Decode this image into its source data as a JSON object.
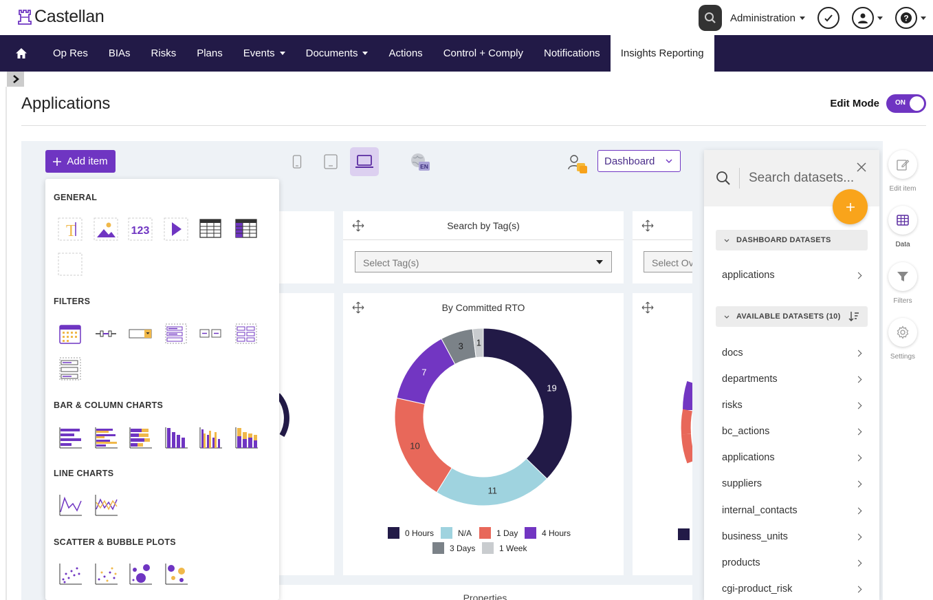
{
  "app": {
    "name": "Castellan"
  },
  "header": {
    "admin_label": "Administration"
  },
  "nav": {
    "items": [
      "Op Res",
      "BIAs",
      "Risks",
      "Plans",
      "Events",
      "Documents",
      "Actions",
      "Control + Comply",
      "Notifications",
      "Insights Reporting"
    ],
    "active": "Insights Reporting"
  },
  "page": {
    "title": "Applications",
    "edit_mode_label": "Edit Mode",
    "edit_mode_state": "ON"
  },
  "toolbar": {
    "add_item_label": "Add item",
    "dashboard_select": "Dashboard",
    "language_badge": "EN"
  },
  "add_menu": {
    "sections": [
      "GENERAL",
      "FILTERS",
      "BAR & COLUMN CHARTS",
      "LINE CHARTS",
      "SCATTER & BUBBLE PLOTS"
    ],
    "general_number_icon_text": "123"
  },
  "widgets": {
    "tag_filter": {
      "title": "Search by Tag(s)",
      "placeholder": "Select Tag(s)"
    },
    "right_filter": {
      "placeholder": "Select Ov"
    },
    "rto_chart": {
      "title": "By Committed RTO"
    },
    "bottom_card": {
      "title": "Properties"
    }
  },
  "chart_data": {
    "type": "pie",
    "title": "By Committed RTO",
    "donut": true,
    "categories": [
      "0 Hours",
      "N/A",
      "1 Day",
      "4 Hours",
      "3 Days",
      "1 Week"
    ],
    "values": [
      19,
      11,
      10,
      7,
      3,
      1
    ],
    "colors": [
      "#221a47",
      "#9fd3df",
      "#e8685a",
      "#7236c2",
      "#7b8288",
      "#c9cccf"
    ],
    "data_label_colors": [
      "#ffffff",
      "#333333",
      "#333333",
      "#ffffff",
      "#222222",
      "#222222"
    ],
    "legend_position": "bottom"
  },
  "dataset_panel": {
    "search_placeholder": "Search datasets...",
    "dashboard_section": "DASHBOARD DATASETS",
    "dashboard_items": [
      "applications"
    ],
    "available_section": "AVAILABLE DATASETS (10)",
    "available_items": [
      "docs",
      "departments",
      "risks",
      "bc_actions",
      "applications",
      "suppliers",
      "internal_contacts",
      "business_units",
      "products",
      "cgi-product_risk"
    ]
  },
  "rail": {
    "items": [
      "Edit item",
      "Data",
      "Filters",
      "Settings"
    ],
    "active": "Data"
  },
  "colors": {
    "brand_dark": "#221a47",
    "accent": "#6f35c2",
    "fab": "#f9a41b"
  }
}
